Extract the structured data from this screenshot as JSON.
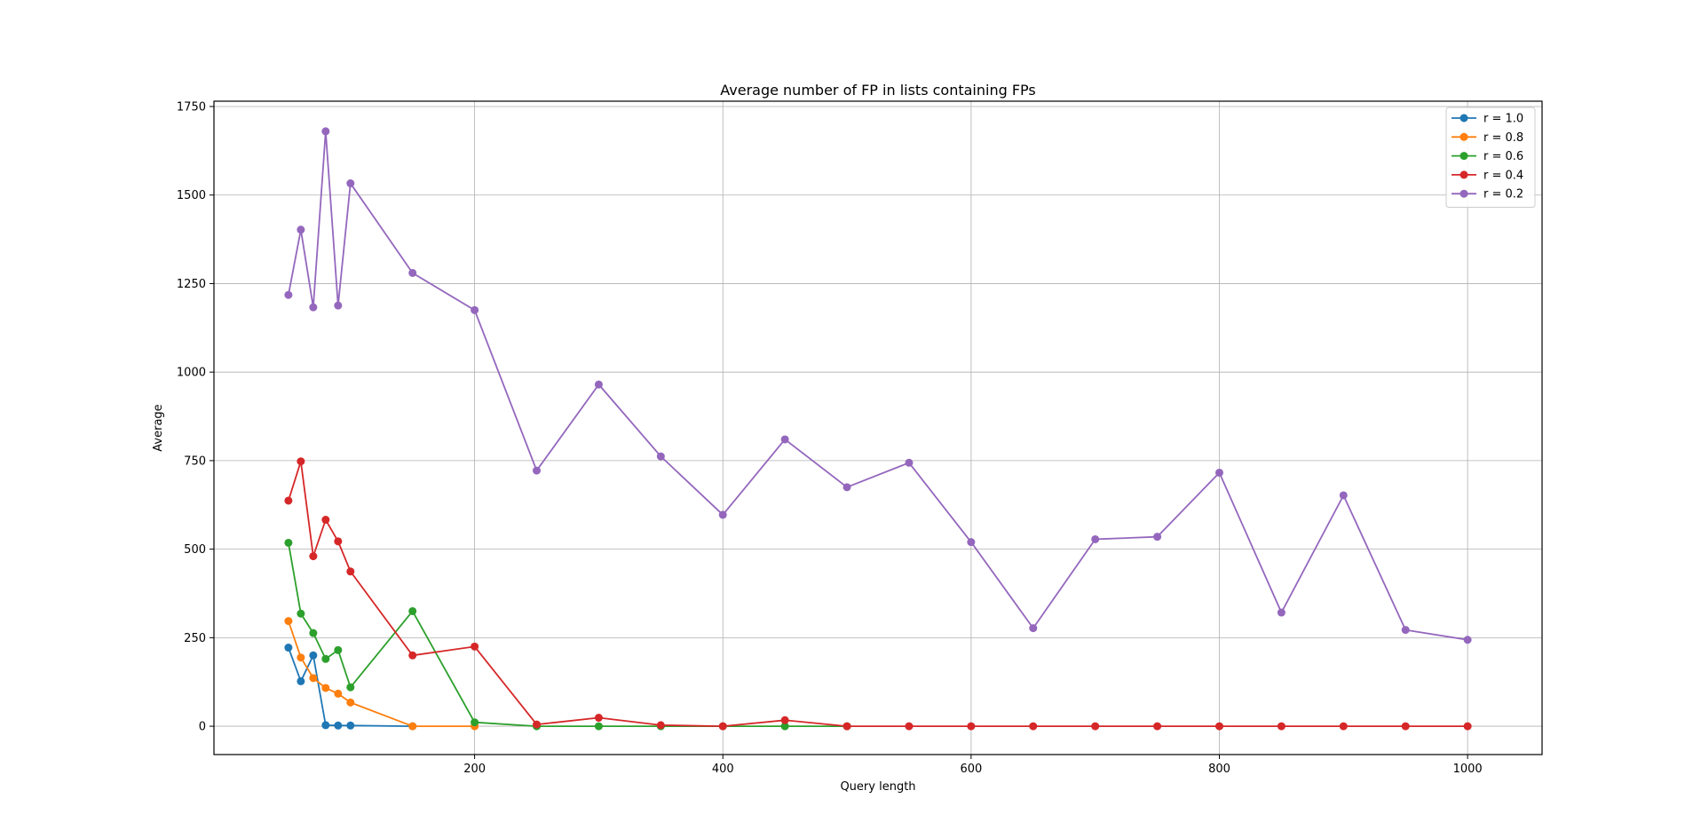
{
  "chart_data": {
    "type": "line",
    "title": "Average number of FP in lists containing FPs",
    "xlabel": "Query length",
    "ylabel": "Average",
    "xlim": [
      -10,
      1060
    ],
    "ylim": [
      -80,
      1765
    ],
    "x_ticks": [
      200,
      400,
      600,
      800,
      1000
    ],
    "y_ticks": [
      0,
      250,
      500,
      750,
      1000,
      1250,
      1500,
      1750
    ],
    "grid": true,
    "legend_position": "top-right",
    "series": [
      {
        "name": "r = 1.0",
        "color": "#1f77b4",
        "x": [
          50,
          60,
          70,
          80,
          90,
          100,
          150
        ],
        "y": [
          222,
          127,
          200,
          3,
          2,
          2,
          0
        ]
      },
      {
        "name": "r = 0.8",
        "color": "#ff7f0e",
        "x": [
          50,
          60,
          70,
          80,
          90,
          100,
          150,
          200
        ],
        "y": [
          297,
          194,
          136,
          108,
          92,
          67,
          0,
          0
        ]
      },
      {
        "name": "r = 0.6",
        "color": "#2ca02c",
        "x": [
          50,
          60,
          70,
          80,
          90,
          100,
          150,
          200,
          250,
          300,
          350,
          400,
          450,
          500
        ],
        "y": [
          518,
          318,
          263,
          190,
          215,
          110,
          325,
          11,
          0,
          0,
          0,
          0,
          0,
          0
        ]
      },
      {
        "name": "r = 0.4",
        "color": "#d62728",
        "x": [
          50,
          60,
          70,
          80,
          90,
          100,
          150,
          200,
          250,
          300,
          350,
          400,
          450,
          500,
          550,
          600,
          650,
          700,
          750,
          800,
          850,
          900,
          950,
          1000
        ],
        "y": [
          637,
          748,
          480,
          583,
          522,
          437,
          200,
          225,
          5,
          24,
          3,
          0,
          17,
          0,
          0,
          0,
          0,
          0,
          0,
          0,
          0,
          0,
          0,
          0
        ]
      },
      {
        "name": "r = 0.2",
        "color": "#9467bd",
        "x": [
          50,
          60,
          70,
          80,
          90,
          100,
          150,
          200,
          250,
          300,
          350,
          400,
          450,
          500,
          550,
          600,
          650,
          700,
          750,
          800,
          850,
          900,
          950,
          1000
        ],
        "y": [
          1218,
          1402,
          1183,
          1680,
          1188,
          1533,
          1280,
          1175,
          722,
          965,
          762,
          597,
          810,
          675,
          744,
          520,
          277,
          528,
          535,
          716,
          321,
          652,
          272,
          244
        ]
      }
    ]
  }
}
